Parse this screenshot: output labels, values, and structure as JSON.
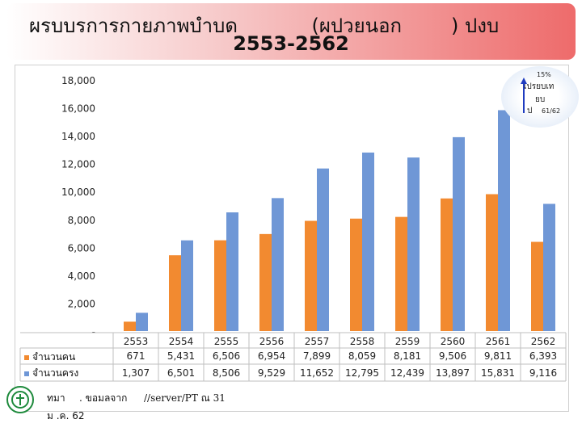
{
  "header": {
    "title_line1": "ผรบบรการกายภาพบำบด            (ผปวยนอก        ) ปงบ",
    "title_line2": "2553-2562"
  },
  "chart_data": {
    "type": "bar",
    "categories": [
      "2553",
      "2554",
      "2555",
      "2556",
      "2557",
      "2558",
      "2559",
      "2560",
      "2561",
      "2562"
    ],
    "series": [
      {
        "name": "จำนวนคน",
        "values": [
          671,
          5431,
          6506,
          6954,
          7899,
          8059,
          8181,
          9506,
          9811,
          6393
        ],
        "labels": [
          "671",
          "5,431",
          "6,506",
          "6,954",
          "7,899",
          "8,059",
          "8,181",
          "9,506",
          "9,811",
          "6,393"
        ],
        "color": "#f28a30"
      },
      {
        "name": "จำนวนครง",
        "values": [
          1307,
          6501,
          8506,
          9529,
          11652,
          12795,
          12439,
          13897,
          15831,
          9116
        ],
        "labels": [
          "1,307",
          "6,501",
          "8,506",
          "9,529",
          "11,652",
          "12,795",
          "12,439",
          "13,897",
          "15,831",
          "9,116"
        ],
        "color": "#6f97d6"
      }
    ],
    "y_ticks": [
      "-",
      "2,000",
      "4,000",
      "6,000",
      "8,000",
      "10,000",
      "12,000",
      "14,000",
      "16,000",
      "18,000"
    ],
    "ylim": [
      0,
      18000
    ],
    "grid": false,
    "legend": "bottom-left table"
  },
  "annotation": {
    "pct": "15%",
    "line1": "เปรยบเท",
    "line2": "ยบ",
    "line3": "ป",
    "line4": "61/62",
    "arrow_color": "#1f3cc0"
  },
  "footer": {
    "source_prefix": "ทมา",
    "source_mid": ". ขอมลจาก",
    "source_path": "//server/PT ณ  31",
    "source_date": "ม  .ค. 62"
  },
  "colors": {
    "logo": "#1e8a3c"
  }
}
